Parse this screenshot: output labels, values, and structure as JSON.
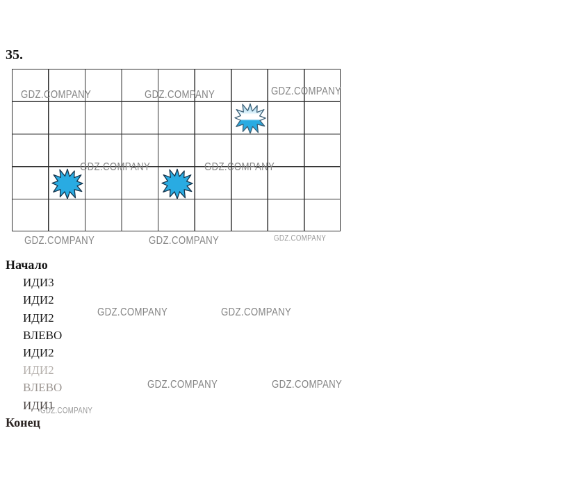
{
  "page": {
    "task_number": "35."
  },
  "watermark": {
    "text": "GDZ.COMPANY"
  },
  "colors": {
    "star_fill": "#29abe2",
    "star_outline": "#16374f",
    "grid_line": "#2f2f2f",
    "watermark_gray": "#858585"
  },
  "grid": {
    "columns": 9,
    "rows": 5,
    "stars": [
      {
        "row": 2,
        "col": 7,
        "variant": "partially-erased"
      },
      {
        "row": 4,
        "col": 2,
        "variant": "solid"
      },
      {
        "row": 4,
        "col": 5,
        "variant": "solid"
      }
    ]
  },
  "program": {
    "begin_label": "Начало",
    "commands": [
      "ИДИ3",
      "ИДИ2",
      "ИДИ2",
      "ВЛЕВО",
      "ИДИ2",
      "ИДИ2",
      "ВЛЕВО",
      "ИДИ1"
    ],
    "end_label": "Конец"
  }
}
